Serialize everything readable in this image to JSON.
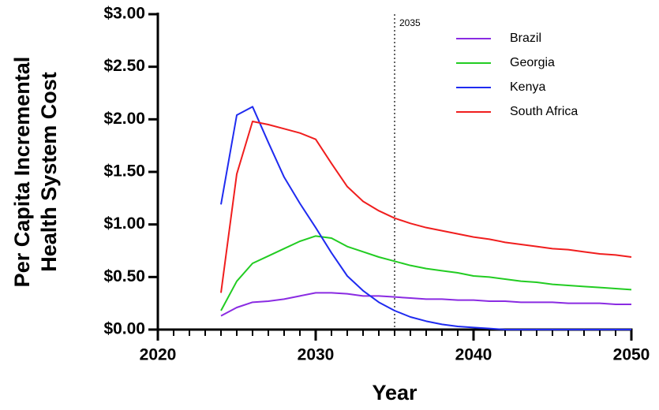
{
  "chart_data": {
    "type": "line",
    "xlabel": "Year",
    "ylabel": [
      "Per Capita Incremental",
      "Health System Cost"
    ],
    "x": [
      2024,
      2025,
      2026,
      2027,
      2028,
      2029,
      2030,
      2031,
      2032,
      2033,
      2034,
      2035,
      2036,
      2037,
      2038,
      2039,
      2040,
      2041,
      2042,
      2043,
      2044,
      2045,
      2046,
      2047,
      2048,
      2049,
      2050
    ],
    "series": [
      {
        "name": "Brazil",
        "color": "#8a2be2",
        "values": [
          0.13,
          0.21,
          0.26,
          0.27,
          0.29,
          0.32,
          0.35,
          0.35,
          0.34,
          0.32,
          0.32,
          0.31,
          0.3,
          0.29,
          0.29,
          0.28,
          0.28,
          0.27,
          0.27,
          0.26,
          0.26,
          0.26,
          0.25,
          0.25,
          0.25,
          0.24,
          0.24
        ]
      },
      {
        "name": "Georgia",
        "color": "#22cc22",
        "values": [
          0.18,
          0.46,
          0.63,
          0.7,
          0.77,
          0.84,
          0.89,
          0.87,
          0.79,
          0.74,
          0.69,
          0.65,
          0.61,
          0.58,
          0.56,
          0.54,
          0.51,
          0.5,
          0.48,
          0.46,
          0.45,
          0.43,
          0.42,
          0.41,
          0.4,
          0.39,
          0.38
        ]
      },
      {
        "name": "Kenya",
        "color": "#1f2bf0",
        "values": [
          1.19,
          2.04,
          2.12,
          1.78,
          1.45,
          1.2,
          0.97,
          0.73,
          0.51,
          0.37,
          0.26,
          0.18,
          0.12,
          0.08,
          0.05,
          0.03,
          0.02,
          0.01,
          0.0,
          0.0,
          0.0,
          0.0,
          0.0,
          0.0,
          0.0,
          0.0,
          0.0
        ]
      },
      {
        "name": "South Africa",
        "color": "#f01e1e",
        "values": [
          0.35,
          1.48,
          1.98,
          1.95,
          1.91,
          1.87,
          1.81,
          1.58,
          1.36,
          1.22,
          1.13,
          1.06,
          1.01,
          0.97,
          0.94,
          0.91,
          0.88,
          0.86,
          0.83,
          0.81,
          0.79,
          0.77,
          0.76,
          0.74,
          0.72,
          0.71,
          0.69
        ]
      }
    ],
    "xlim": [
      2020,
      2050
    ],
    "xticks": [
      2020,
      2030,
      2040,
      2050
    ],
    "xminorticks": [
      2021,
      2022,
      2023,
      2024,
      2025,
      2026,
      2027,
      2028,
      2029,
      2031,
      2032,
      2033,
      2034,
      2035,
      2036,
      2037,
      2038,
      2039,
      2041,
      2042,
      2043,
      2044,
      2045,
      2046,
      2047,
      2048,
      2049
    ],
    "ylim": [
      0,
      3
    ],
    "yticks": [
      {
        "value": 0,
        "label": "$0.00"
      },
      {
        "value": 0.5,
        "label": "$0.50"
      },
      {
        "value": 1,
        "label": "$1.00"
      },
      {
        "value": 1.5,
        "label": "$1.50"
      },
      {
        "value": 2,
        "label": "$2.00"
      },
      {
        "value": 2.5,
        "label": "$2.50"
      },
      {
        "value": 3,
        "label": "$3.00"
      }
    ],
    "annotations": [
      {
        "x": 2035,
        "label": "2035"
      }
    ],
    "legend": "upper right"
  }
}
